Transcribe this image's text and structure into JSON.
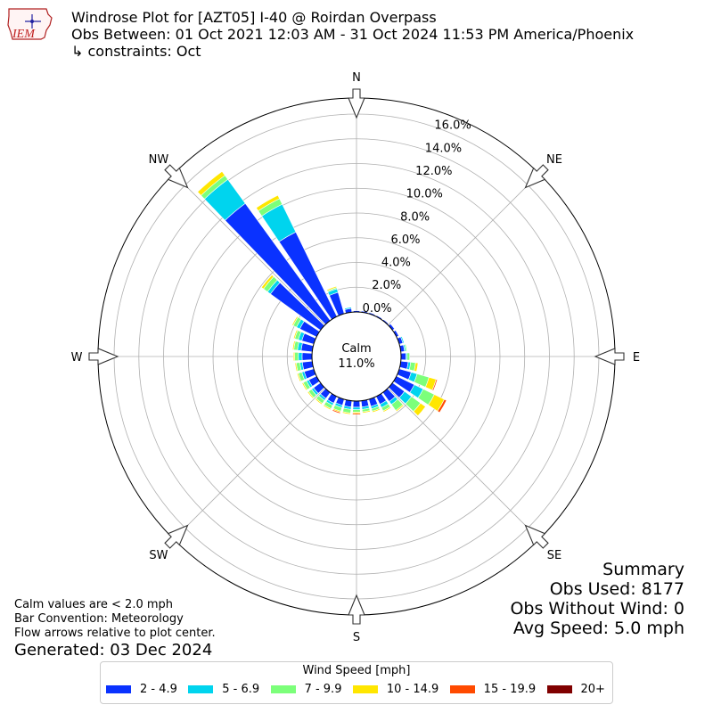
{
  "header": {
    "logo_text": "IEM",
    "title": "Windrose Plot for [AZT05] I-40 @ Roirdan Overpass",
    "subtitle": "Obs Between: 01 Oct 2021 12:03 AM - 31 Oct 2024 11:53 PM America/Phoenix",
    "constraints": "↳ constraints: Oct"
  },
  "summary": {
    "heading": "Summary",
    "obs_used": "Obs Used: 8177",
    "obs_without_wind": "Obs Without Wind: 0",
    "avg_speed": "Avg Speed: 5.0 mph"
  },
  "notes": {
    "calm_note": "Calm values are < 2.0 mph",
    "bar_convention": "Bar Convention: Meteorology",
    "flow_arrows": "Flow arrows relative to plot center.",
    "generated": "Generated: 03 Dec 2024"
  },
  "calm": {
    "label": "Calm",
    "value": "11.0%"
  },
  "legend": {
    "title": "Wind Speed [mph]",
    "items": [
      {
        "label": "2 - 4.9",
        "color": "#0a32ff"
      },
      {
        "label": "5 - 6.9",
        "color": "#00d4ee"
      },
      {
        "label": "7 - 9.9",
        "color": "#7cff7a"
      },
      {
        "label": "10 - 14.9",
        "color": "#ffe600"
      },
      {
        "label": "15 - 19.9",
        "color": "#ff4a00"
      },
      {
        "label": "20+",
        "color": "#800000"
      }
    ]
  },
  "chart_data": {
    "type": "windrose",
    "title": "Windrose Plot for [AZT05] I-40 @ Roirdan Overpass",
    "radial_ticks": [
      "0.0%",
      "2.0%",
      "4.0%",
      "6.0%",
      "8.0%",
      "10.0%",
      "12.0%",
      "14.0%",
      "16.0%"
    ],
    "rlim": [
      0,
      17.3
    ],
    "calm_percent": 11.0,
    "direction_labels": [
      "N",
      "NE",
      "E",
      "SE",
      "S",
      "SW",
      "W",
      "NW"
    ],
    "direction_angles": [
      0,
      45,
      90,
      135,
      180,
      225,
      270,
      315
    ],
    "speed_bins": [
      "2 - 4.9",
      "5 - 6.9",
      "7 - 9.9",
      "10 - 14.9",
      "15 - 19.9",
      "20+"
    ],
    "colors": [
      "#0a32ff",
      "#00d4ee",
      "#7cff7a",
      "#ffe600",
      "#ff4a00",
      "#800000"
    ],
    "directions": [
      0,
      10,
      20,
      30,
      40,
      50,
      60,
      70,
      80,
      90,
      100,
      110,
      120,
      130,
      140,
      150,
      160,
      170,
      180,
      190,
      200,
      210,
      220,
      230,
      240,
      250,
      260,
      270,
      280,
      290,
      300,
      310,
      320,
      330,
      340,
      350
    ],
    "bins": [
      [
        0.1,
        0,
        0,
        0,
        0,
        0
      ],
      [
        0.1,
        0,
        0,
        0,
        0,
        0
      ],
      [
        0.1,
        0,
        0,
        0,
        0,
        0
      ],
      [
        0.1,
        0,
        0,
        0,
        0,
        0
      ],
      [
        0.1,
        0,
        0,
        0,
        0,
        0
      ],
      [
        0.2,
        0,
        0,
        0,
        0,
        0
      ],
      [
        0.2,
        0,
        0,
        0,
        0,
        0
      ],
      [
        0.3,
        0.1,
        0,
        0,
        0,
        0
      ],
      [
        0.3,
        0.1,
        0.1,
        0,
        0,
        0
      ],
      [
        0.4,
        0.1,
        0.2,
        0,
        0,
        0
      ],
      [
        0.6,
        0.2,
        0.4,
        0.2,
        0,
        0
      ],
      [
        1.0,
        0.5,
        1.0,
        0.6,
        0.1,
        0
      ],
      [
        1.6,
        0.8,
        1.0,
        0.9,
        0.2,
        0
      ],
      [
        1.2,
        0.7,
        0.9,
        0.5,
        0,
        0
      ],
      [
        0.9,
        0.3,
        0.6,
        0.1,
        0,
        0
      ],
      [
        0.7,
        0.3,
        0.3,
        0.1,
        0,
        0
      ],
      [
        0.6,
        0.2,
        0.2,
        0.1,
        0,
        0
      ],
      [
        0.5,
        0.2,
        0.2,
        0.1,
        0,
        0
      ],
      [
        0.5,
        0.2,
        0.2,
        0.1,
        0.1,
        0
      ],
      [
        0.5,
        0.2,
        0.3,
        0.1,
        0,
        0
      ],
      [
        0.5,
        0.2,
        0.3,
        0.1,
        0.1,
        0
      ],
      [
        0.6,
        0.2,
        0.3,
        0.1,
        0,
        0
      ],
      [
        0.6,
        0.2,
        0.3,
        0.1,
        0,
        0
      ],
      [
        0.7,
        0.2,
        0.3,
        0.1,
        0,
        0
      ],
      [
        0.7,
        0.2,
        0.3,
        0.1,
        0,
        0
      ],
      [
        0.8,
        0.2,
        0.3,
        0.1,
        0,
        0
      ],
      [
        0.8,
        0.2,
        0.3,
        0.1,
        0,
        0
      ],
      [
        0.8,
        0.3,
        0.3,
        0.1,
        0,
        0
      ],
      [
        0.9,
        0.3,
        0.3,
        0.1,
        0,
        0
      ],
      [
        1.0,
        0.3,
        0.3,
        0.1,
        0,
        0
      ],
      [
        1.5,
        0.3,
        0.3,
        0.1,
        0,
        0
      ],
      [
        5.0,
        0.3,
        0.4,
        0.2,
        0,
        0
      ],
      [
        11.7,
        2.4,
        0.4,
        0.4,
        0,
        0
      ],
      [
        7.6,
        2.5,
        0.5,
        0.3,
        0,
        0
      ],
      [
        1.8,
        0.3,
        0.1,
        0.1,
        0,
        0
      ],
      [
        0.3,
        0.1,
        0,
        0,
        0,
        0
      ]
    ]
  }
}
